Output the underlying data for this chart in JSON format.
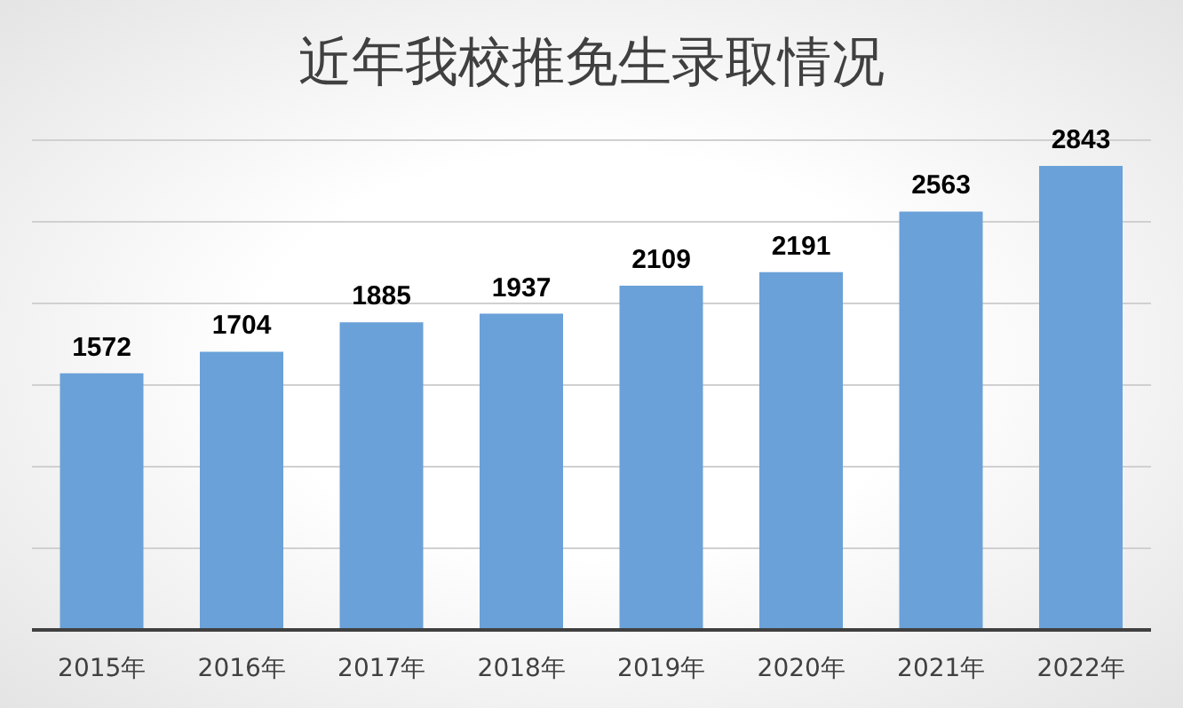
{
  "chart_data": {
    "type": "bar",
    "title": "近年我校推免生录取情况",
    "categories": [
      "2015年",
      "2016年",
      "2017年",
      "2018年",
      "2019年",
      "2020年",
      "2021年",
      "2022年"
    ],
    "values": [
      1572,
      1704,
      1885,
      1937,
      2109,
      2191,
      2563,
      2843
    ],
    "color": "#6aa1d8",
    "ylim": [
      0,
      3000
    ],
    "tick_labels": "x",
    "grid": "y",
    "data_labels": true,
    "legend": false
  }
}
